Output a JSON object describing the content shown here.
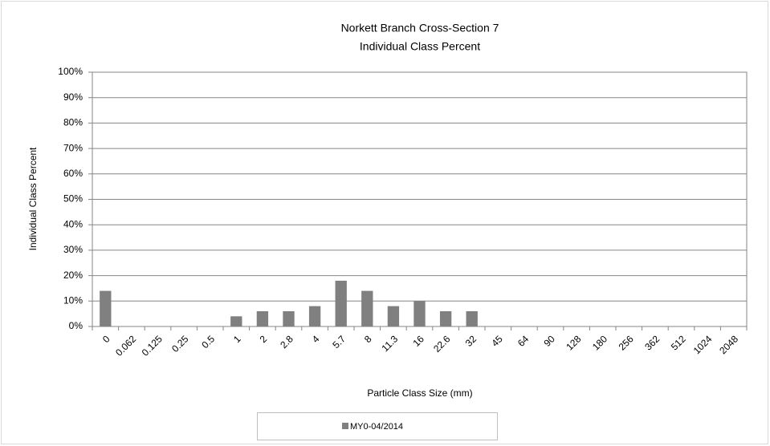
{
  "chart_data": {
    "type": "bar",
    "title": "Norkett Branch Cross-Section 7",
    "subtitle": "Individual Class Percent",
    "x_label": "Particle Class Size (mm)",
    "y_label": "Individual Class Percent",
    "categories": [
      "0",
      "0.062",
      "0.125",
      "0.25",
      "0.5",
      "1",
      "2",
      "2.8",
      "4",
      "5.7",
      "8",
      "11.3",
      "16",
      "22.6",
      "32",
      "45",
      "64",
      "90",
      "128",
      "180",
      "256",
      "362",
      "512",
      "1024",
      "2048"
    ],
    "series": [
      {
        "name": "MY0-04/2014",
        "color": "#808080",
        "values": [
          14,
          0,
          0,
          0,
          0,
          4,
          6,
          6,
          8,
          18,
          14,
          8,
          10,
          6,
          6,
          0,
          0,
          0,
          0,
          0,
          0,
          0,
          0,
          0,
          0
        ]
      }
    ],
    "ylim": [
      0,
      100
    ],
    "yticks": [
      {
        "value": 0,
        "label": "0%"
      },
      {
        "value": 10,
        "label": "10%"
      },
      {
        "value": 20,
        "label": "20%"
      },
      {
        "value": 30,
        "label": "30%"
      },
      {
        "value": 40,
        "label": "40%"
      },
      {
        "value": 50,
        "label": "50%"
      },
      {
        "value": 60,
        "label": "60%"
      },
      {
        "value": 70,
        "label": "70%"
      },
      {
        "value": 80,
        "label": "80%"
      },
      {
        "value": 90,
        "label": "90%"
      },
      {
        "value": 100,
        "label": "100%"
      }
    ],
    "grid": true,
    "legend": "bottom"
  }
}
